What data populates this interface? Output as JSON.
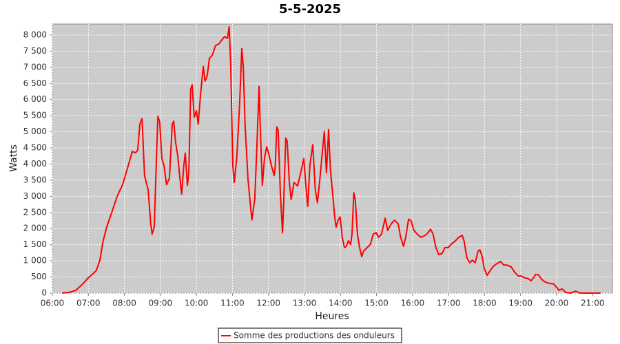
{
  "chart_data": {
    "type": "line",
    "title": "5-5-2025",
    "x_label": "Heures",
    "y_label": "Watts",
    "x": [
      6.27,
      6.46,
      6.65,
      6.84,
      7.01,
      7.13,
      7.22,
      7.32,
      7.41,
      7.51,
      7.64,
      7.8,
      7.95,
      8.08,
      8.22,
      8.31,
      8.37,
      8.43,
      8.49,
      8.56,
      8.66,
      8.73,
      8.77,
      8.83,
      8.89,
      8.93,
      8.98,
      9.04,
      9.1,
      9.17,
      9.25,
      9.33,
      9.37,
      9.42,
      9.48,
      9.56,
      9.59,
      9.65,
      9.69,
      9.75,
      9.79,
      9.84,
      9.88,
      9.94,
      10.0,
      10.05,
      10.11,
      10.19,
      10.24,
      10.3,
      10.36,
      10.44,
      10.53,
      10.63,
      10.7,
      10.78,
      10.86,
      10.91,
      10.95,
      11.01,
      11.05,
      11.12,
      11.2,
      11.26,
      11.3,
      11.35,
      11.43,
      11.51,
      11.54,
      11.62,
      11.68,
      11.74,
      11.77,
      11.83,
      11.89,
      11.95,
      12.0,
      12.08,
      12.16,
      12.19,
      12.23,
      12.27,
      12.33,
      12.39,
      12.42,
      12.48,
      12.52,
      12.58,
      12.63,
      12.71,
      12.81,
      12.9,
      12.98,
      13.04,
      13.09,
      13.15,
      13.23,
      13.3,
      13.36,
      13.42,
      13.48,
      13.55,
      13.61,
      13.67,
      13.72,
      13.78,
      13.84,
      13.88,
      13.93,
      13.99,
      14.05,
      14.11,
      14.16,
      14.22,
      14.28,
      14.32,
      14.37,
      14.41,
      14.47,
      14.53,
      14.59,
      14.64,
      14.74,
      14.83,
      14.91,
      14.99,
      15.06,
      15.14,
      15.24,
      15.31,
      15.41,
      15.5,
      15.6,
      15.67,
      15.75,
      15.81,
      15.89,
      15.96,
      16.04,
      16.13,
      16.23,
      16.32,
      16.4,
      16.5,
      16.57,
      16.65,
      16.73,
      16.82,
      16.9,
      16.99,
      17.07,
      17.19,
      17.28,
      17.38,
      17.43,
      17.51,
      17.59,
      17.66,
      17.74,
      17.82,
      17.87,
      17.93,
      17.99,
      18.07,
      18.16,
      18.24,
      18.35,
      18.45,
      18.53,
      18.62,
      18.74,
      18.83,
      18.93,
      19.02,
      19.12,
      19.21,
      19.29,
      19.37,
      19.42,
      19.5,
      19.58,
      19.69,
      19.8,
      19.92,
      19.99,
      20.07,
      20.15,
      20.26,
      20.38,
      20.53,
      20.65,
      20.8,
      21.03,
      21.22
    ],
    "series": [
      {
        "name": "Somme des productions des onduleurs",
        "color": "#ff0000",
        "values": [
          0,
          21,
          85,
          277,
          490,
          600,
          700,
          1020,
          1620,
          2050,
          2470,
          3000,
          3360,
          3850,
          4390,
          4350,
          4430,
          5240,
          5410,
          3640,
          3200,
          2170,
          1830,
          2050,
          4170,
          5480,
          5310,
          4170,
          3960,
          3360,
          3560,
          5240,
          5330,
          4690,
          4260,
          3360,
          3070,
          3960,
          4340,
          3340,
          3750,
          6320,
          6460,
          5450,
          5650,
          5240,
          6100,
          7030,
          6570,
          6740,
          7280,
          7370,
          7670,
          7730,
          7840,
          7950,
          7900,
          8260,
          7160,
          3960,
          3430,
          4180,
          5880,
          7580,
          7050,
          5240,
          3560,
          2600,
          2270,
          2900,
          4600,
          6410,
          5240,
          3340,
          4180,
          4540,
          4350,
          3960,
          3640,
          3960,
          5150,
          5050,
          3110,
          1870,
          2690,
          4810,
          4710,
          3430,
          2900,
          3430,
          3320,
          3750,
          4170,
          3320,
          2690,
          3960,
          4600,
          3210,
          2800,
          3450,
          4170,
          5010,
          3730,
          5070,
          3840,
          3110,
          2360,
          2040,
          2260,
          2360,
          1720,
          1410,
          1450,
          1620,
          1510,
          1830,
          3110,
          2900,
          1830,
          1410,
          1130,
          1300,
          1410,
          1510,
          1830,
          1870,
          1730,
          1830,
          2320,
          1940,
          2150,
          2260,
          2150,
          1730,
          1450,
          1730,
          2290,
          2240,
          1940,
          1830,
          1730,
          1770,
          1830,
          1980,
          1830,
          1410,
          1190,
          1230,
          1410,
          1410,
          1510,
          1620,
          1730,
          1790,
          1620,
          1090,
          940,
          1020,
          940,
          1300,
          1340,
          1150,
          770,
          550,
          700,
          830,
          920,
          980,
          870,
          870,
          810,
          660,
          530,
          530,
          470,
          450,
          380,
          490,
          580,
          560,
          430,
          340,
          300,
          280,
          190,
          85,
          130,
          21,
          0,
          60,
          0,
          0,
          0,
          0
        ]
      }
    ],
    "xlim": [
      6,
      21.55
    ],
    "ylim": [
      0,
      8340
    ],
    "xticks": [
      {
        "value": 6,
        "label": "06:00"
      },
      {
        "value": 7,
        "label": "07:00"
      },
      {
        "value": 8,
        "label": "08:00"
      },
      {
        "value": 9,
        "label": "09:00"
      },
      {
        "value": 10,
        "label": "10:00"
      },
      {
        "value": 11,
        "label": "11:00"
      },
      {
        "value": 12,
        "label": "12:00"
      },
      {
        "value": 13,
        "label": "13:00"
      },
      {
        "value": 14,
        "label": "14:00"
      },
      {
        "value": 15,
        "label": "15:00"
      },
      {
        "value": 16,
        "label": "16:00"
      },
      {
        "value": 17,
        "label": "17:00"
      },
      {
        "value": 18,
        "label": "18:00"
      },
      {
        "value": 19,
        "label": "19:00"
      },
      {
        "value": 20,
        "label": "20:00"
      },
      {
        "value": 21,
        "label": "21:00"
      }
    ],
    "yticks": [
      0,
      500,
      {
        "value": 1000,
        "label": "1 000"
      },
      {
        "value": 1500,
        "label": "1 500"
      },
      {
        "value": 2000,
        "label": "2 000"
      },
      {
        "value": 2500,
        "label": "2 500"
      },
      {
        "value": 3000,
        "label": "3 000"
      },
      {
        "value": 3500,
        "label": "3 500"
      },
      {
        "value": 4000,
        "label": "4 000"
      },
      {
        "value": 4500,
        "label": "4 500"
      },
      {
        "value": 5000,
        "label": "5 000"
      },
      {
        "value": 5500,
        "label": "5 500"
      },
      {
        "value": 6000,
        "label": "6 000"
      },
      {
        "value": 6500,
        "label": "6 500"
      },
      {
        "value": 7000,
        "label": "7 000"
      },
      {
        "value": 7500,
        "label": "7 500"
      },
      {
        "value": 8000,
        "label": "8 000"
      }
    ],
    "grid": true,
    "plot_background": "#cccccc",
    "legend": "bottom"
  }
}
